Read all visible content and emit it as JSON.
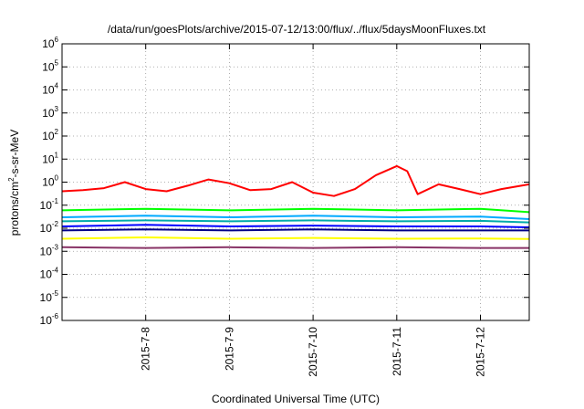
{
  "chart_data": {
    "type": "line",
    "title": "/data/run/goesPlots/archive/2015-07-12/13:00/flux/../flux/5daysMoonFluxes.txt",
    "xlabel": "Coordinated Universal Time (UTC)",
    "ylabel": {
      "base": "protons/cm",
      "sup": "2",
      "rest": "-s-sr-MeV"
    },
    "y_scale": "log",
    "ylim": [
      1e-06,
      1000000.0
    ],
    "y_ticks": [
      {
        "base": "10",
        "exp": "-6"
      },
      {
        "base": "10",
        "exp": "-5"
      },
      {
        "base": "10",
        "exp": "-4"
      },
      {
        "base": "10",
        "exp": "-3"
      },
      {
        "base": "10",
        "exp": "-2"
      },
      {
        "base": "10",
        "exp": "-1"
      },
      {
        "base": "10",
        "exp": "0"
      },
      {
        "base": "10",
        "exp": "1"
      },
      {
        "base": "10",
        "exp": "2"
      },
      {
        "base": "10",
        "exp": "3"
      },
      {
        "base": "10",
        "exp": "4"
      },
      {
        "base": "10",
        "exp": "5"
      },
      {
        "base": "10",
        "exp": "6"
      }
    ],
    "xlim": [
      "2015-07-07T00:00",
      "2015-07-12T14:00"
    ],
    "x_ticks": [
      "2015-7-8",
      "2015-7-9",
      "2015-7-10",
      "2015-7-11",
      "2015-7-12"
    ],
    "grid": true,
    "series": [
      {
        "color": "#ff0000",
        "x": [
          "2015-07-07T00:00",
          "2015-07-07T06:00",
          "2015-07-07T12:00",
          "2015-07-07T18:00",
          "2015-07-08T00:00",
          "2015-07-08T06:00",
          "2015-07-08T12:00",
          "2015-07-08T18:00",
          "2015-07-09T00:00",
          "2015-07-09T06:00",
          "2015-07-09T12:00",
          "2015-07-09T18:00",
          "2015-07-10T00:00",
          "2015-07-10T06:00",
          "2015-07-10T12:00",
          "2015-07-10T18:00",
          "2015-07-11T00:00",
          "2015-07-11T03:00",
          "2015-07-11T06:00",
          "2015-07-11T12:00",
          "2015-07-11T18:00",
          "2015-07-12T00:00",
          "2015-07-12T06:00",
          "2015-07-12T14:00"
        ],
        "values": [
          0.4,
          0.45,
          0.55,
          1.0,
          0.5,
          0.4,
          0.7,
          1.3,
          0.9,
          0.45,
          0.5,
          1.0,
          0.35,
          0.25,
          0.5,
          2.0,
          5.0,
          3.0,
          0.3,
          0.8,
          0.5,
          0.3,
          0.5,
          0.8
        ]
      },
      {
        "color": "#00ff00",
        "x": [
          "2015-07-07T00:00",
          "2015-07-08T00:00",
          "2015-07-09T00:00",
          "2015-07-10T00:00",
          "2015-07-11T00:00",
          "2015-07-12T00:00",
          "2015-07-12T14:00"
        ],
        "values": [
          0.06,
          0.07,
          0.06,
          0.07,
          0.06,
          0.07,
          0.05
        ]
      },
      {
        "color": "#00aaff",
        "x": [
          "2015-07-07T00:00",
          "2015-07-08T00:00",
          "2015-07-09T00:00",
          "2015-07-10T00:00",
          "2015-07-11T00:00",
          "2015-07-12T00:00",
          "2015-07-12T14:00"
        ],
        "values": [
          0.03,
          0.035,
          0.03,
          0.035,
          0.03,
          0.032,
          0.025
        ]
      },
      {
        "color": "#00aaaa",
        "x": [
          "2015-07-07T00:00",
          "2015-07-08T00:00",
          "2015-07-09T00:00",
          "2015-07-10T00:00",
          "2015-07-11T00:00",
          "2015-07-12T00:00",
          "2015-07-12T14:00"
        ],
        "values": [
          0.02,
          0.022,
          0.02,
          0.022,
          0.02,
          0.021,
          0.018
        ]
      },
      {
        "color": "#0000ff",
        "x": [
          "2015-07-07T00:00",
          "2015-07-08T00:00",
          "2015-07-09T00:00",
          "2015-07-10T00:00",
          "2015-07-11T00:00",
          "2015-07-12T00:00",
          "2015-07-12T14:00"
        ],
        "values": [
          0.012,
          0.014,
          0.012,
          0.013,
          0.012,
          0.012,
          0.011
        ]
      },
      {
        "color": "#000088",
        "x": [
          "2015-07-07T00:00",
          "2015-07-08T00:00",
          "2015-07-09T00:00",
          "2015-07-10T00:00",
          "2015-07-11T00:00",
          "2015-07-12T00:00",
          "2015-07-12T14:00"
        ],
        "values": [
          0.008,
          0.009,
          0.008,
          0.009,
          0.008,
          0.008,
          0.008
        ]
      },
      {
        "color": "#ffff00",
        "x": [
          "2015-07-07T00:00",
          "2015-07-08T00:00",
          "2015-07-09T00:00",
          "2015-07-10T00:00",
          "2015-07-11T00:00",
          "2015-07-12T00:00",
          "2015-07-12T14:00"
        ],
        "values": [
          0.0035,
          0.004,
          0.0035,
          0.0038,
          0.0035,
          0.0036,
          0.0034
        ]
      },
      {
        "color": "#883366",
        "x": [
          "2015-07-07T00:00",
          "2015-07-08T00:00",
          "2015-07-09T00:00",
          "2015-07-10T00:00",
          "2015-07-11T00:00",
          "2015-07-12T00:00",
          "2015-07-12T14:00"
        ],
        "values": [
          0.0015,
          0.0014,
          0.0015,
          0.0014,
          0.0015,
          0.0014,
          0.0014
        ]
      }
    ]
  }
}
